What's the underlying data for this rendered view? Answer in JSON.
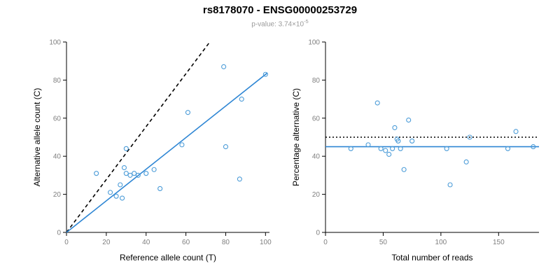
{
  "header": {
    "title": "rs8178070 - ENSG00000253729",
    "pvalue_prefix": "p-value: ",
    "pvalue_base": "3.74×10",
    "pvalue_exponent": "-5"
  },
  "colors": {
    "point": "#4C9CD8",
    "fit_line": "#2E86D4",
    "reference_line": "#000000",
    "axis": "#000000",
    "tick_label": "#7f7f7f",
    "axis_label": "#000000",
    "subtitle": "#9a9a9a"
  },
  "chart_data": [
    {
      "id": "left",
      "type": "scatter",
      "title": "",
      "xlabel": "Reference allele count (T)",
      "ylabel": "Alternative allele count (C)",
      "xlim": [
        0,
        102
      ],
      "ylim": [
        0,
        100
      ],
      "xticks": [
        0,
        20,
        40,
        60,
        80,
        100
      ],
      "yticks": [
        0,
        20,
        40,
        60,
        80,
        100
      ],
      "grid": false,
      "legend": "none",
      "points": [
        [
          15,
          31
        ],
        [
          22,
          21
        ],
        [
          25,
          19
        ],
        [
          27,
          25
        ],
        [
          28,
          18
        ],
        [
          29,
          34
        ],
        [
          30,
          31
        ],
        [
          30,
          44
        ],
        [
          32,
          30
        ],
        [
          34,
          31
        ],
        [
          36,
          30
        ],
        [
          40,
          31
        ],
        [
          44,
          33
        ],
        [
          47,
          23
        ],
        [
          58,
          46
        ],
        [
          61,
          63
        ],
        [
          79,
          87
        ],
        [
          80,
          45
        ],
        [
          87,
          28
        ],
        [
          88,
          70
        ],
        [
          100,
          83
        ]
      ],
      "lines": [
        {
          "name": "expected-ratio-line",
          "style": "dashed",
          "color": "#000000",
          "from": [
            0,
            0
          ],
          "to": [
            72,
            100
          ]
        },
        {
          "name": "fitted-ratio-line",
          "style": "solid",
          "color": "#2E86D4",
          "from": [
            0,
            0
          ],
          "to": [
            101,
            83.8
          ]
        }
      ]
    },
    {
      "id": "right",
      "type": "scatter",
      "title": "",
      "xlabel": "Total number of reads",
      "ylabel": "Percentage alternative (C)",
      "xlim": [
        0,
        185
      ],
      "ylim": [
        0,
        100
      ],
      "xticks": [
        0,
        50,
        100,
        150
      ],
      "yticks": [
        0,
        20,
        40,
        60,
        80,
        100
      ],
      "grid": false,
      "legend": "none",
      "points": [
        [
          22,
          44
        ],
        [
          37,
          46
        ],
        [
          45,
          68
        ],
        [
          48,
          44
        ],
        [
          52,
          43
        ],
        [
          55,
          41
        ],
        [
          58,
          44
        ],
        [
          60,
          55
        ],
        [
          62,
          49
        ],
        [
          63,
          48
        ],
        [
          65,
          44
        ],
        [
          68,
          33
        ],
        [
          72,
          59
        ],
        [
          75,
          48
        ],
        [
          105,
          44
        ],
        [
          108,
          25
        ],
        [
          122,
          37
        ],
        [
          125,
          50
        ],
        [
          158,
          44
        ],
        [
          165,
          53
        ],
        [
          180,
          45
        ]
      ],
      "lines": [
        {
          "name": "expected-percentage-line",
          "style": "dotted",
          "color": "#000000",
          "from": [
            0,
            50
          ],
          "to": [
            185,
            50
          ]
        },
        {
          "name": "fitted-percentage-line",
          "style": "solid",
          "color": "#2E86D4",
          "from": [
            0,
            45
          ],
          "to": [
            185,
            45
          ]
        }
      ]
    }
  ]
}
